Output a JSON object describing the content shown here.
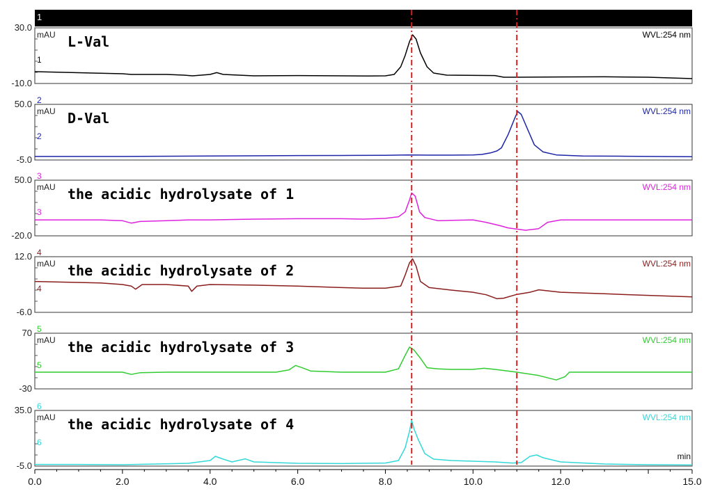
{
  "header": {
    "number": "1"
  },
  "chart_data": {
    "type": "line",
    "x_range": [
      0,
      15
    ],
    "x_ticks": [
      "0.0",
      "2.0",
      "4.0",
      "6.0",
      "8.0",
      "10.0",
      "12.0",
      "15.0"
    ],
    "x_unit": "min",
    "reference_lines_x": [
      8.6,
      11.0
    ],
    "panels": [
      {
        "id": "1",
        "title": "L-Val",
        "color": "#000000",
        "unit": "mAU",
        "wavelength": "WVL:254 nm",
        "y_range": [
          -10,
          30
        ],
        "y_ticks": [
          "30.0",
          "-10.0"
        ],
        "points": [
          [
            0,
            -1.5
          ],
          [
            2,
            -3
          ],
          [
            2.2,
            -3.5
          ],
          [
            3.0,
            -3.5
          ],
          [
            3.4,
            -4
          ],
          [
            3.6,
            -4.5
          ],
          [
            4.0,
            -3.5
          ],
          [
            4.15,
            -2.2
          ],
          [
            4.3,
            -3.5
          ],
          [
            5,
            -4.5
          ],
          [
            6,
            -4.3
          ],
          [
            7,
            -4.5
          ],
          [
            7.6,
            -4.6
          ],
          [
            8.0,
            -4.5
          ],
          [
            8.2,
            -3.5
          ],
          [
            8.35,
            2
          ],
          [
            8.45,
            10
          ],
          [
            8.55,
            20
          ],
          [
            8.62,
            25
          ],
          [
            8.7,
            22
          ],
          [
            8.8,
            12
          ],
          [
            8.95,
            2
          ],
          [
            9.1,
            -2.5
          ],
          [
            9.4,
            -4
          ],
          [
            10.5,
            -4.3
          ],
          [
            10.7,
            -5.5
          ],
          [
            11.0,
            -5.5
          ],
          [
            12,
            -5.3
          ],
          [
            13,
            -5.2
          ],
          [
            14,
            -5.5
          ],
          [
            15,
            -6.5
          ]
        ]
      },
      {
        "id": "2",
        "title": "D-Val",
        "color": "#1c24a6",
        "unit": "mAU",
        "wavelength": "WVL:254 nm",
        "y_range": [
          -5,
          50
        ],
        "y_ticks": [
          "50.0",
          "-5.0"
        ],
        "points": [
          [
            0,
            -1.5
          ],
          [
            2,
            -1.5
          ],
          [
            4,
            -1
          ],
          [
            6,
            -0.6
          ],
          [
            7,
            -0.5
          ],
          [
            8,
            -0.3
          ],
          [
            8.5,
            0
          ],
          [
            9,
            -0.2
          ],
          [
            9.5,
            -0.2
          ],
          [
            10,
            0
          ],
          [
            10.2,
            0.5
          ],
          [
            10.4,
            2
          ],
          [
            10.55,
            4
          ],
          [
            10.65,
            7
          ],
          [
            10.8,
            20
          ],
          [
            10.95,
            36
          ],
          [
            11.02,
            43
          ],
          [
            11.1,
            40
          ],
          [
            11.25,
            25
          ],
          [
            11.4,
            10
          ],
          [
            11.6,
            3
          ],
          [
            11.9,
            0
          ],
          [
            12.5,
            -1
          ],
          [
            13.5,
            -1.3
          ],
          [
            15,
            -1.7
          ]
        ]
      },
      {
        "id": "3",
        "title": "the acidic hydrolysate of 1",
        "color": "#dd22dd",
        "unit": "mAU",
        "wavelength": "WVL:254 nm",
        "y_range": [
          -20,
          50
        ],
        "y_ticks": [
          "50.0",
          "-20.0"
        ],
        "points": [
          [
            0,
            0
          ],
          [
            1.5,
            0
          ],
          [
            2,
            -1
          ],
          [
            2.2,
            -4
          ],
          [
            2.4,
            -2
          ],
          [
            3,
            -1
          ],
          [
            3.5,
            0
          ],
          [
            4,
            0
          ],
          [
            5,
            1
          ],
          [
            6,
            1.5
          ],
          [
            7,
            1.5
          ],
          [
            7.5,
            1
          ],
          [
            8,
            2
          ],
          [
            8.3,
            4
          ],
          [
            8.45,
            10
          ],
          [
            8.55,
            25
          ],
          [
            8.6,
            34
          ],
          [
            8.68,
            30
          ],
          [
            8.78,
            10
          ],
          [
            8.9,
            3
          ],
          [
            9.2,
            -1
          ],
          [
            9.5,
            -0.5
          ],
          [
            10,
            0
          ],
          [
            10.3,
            -3
          ],
          [
            10.6,
            -7
          ],
          [
            10.8,
            -10
          ],
          [
            11.2,
            -13
          ],
          [
            11.5,
            -11
          ],
          [
            11.7,
            -3
          ],
          [
            12,
            0
          ],
          [
            13,
            0
          ],
          [
            15,
            0
          ]
        ]
      },
      {
        "id": "4",
        "title": "the acidic hydrolysate of 2",
        "color": "#8a1c1c",
        "unit": "mAU",
        "wavelength": "WVL:254 nm",
        "y_range": [
          -6,
          12
        ],
        "y_ticks": [
          "12.0",
          "-6.0"
        ],
        "points": [
          [
            0,
            4
          ],
          [
            1.5,
            3.5
          ],
          [
            2,
            3
          ],
          [
            2.2,
            2.5
          ],
          [
            2.3,
            1.5
          ],
          [
            2.45,
            3
          ],
          [
            3,
            3
          ],
          [
            3.5,
            2.5
          ],
          [
            3.58,
            0.8
          ],
          [
            3.7,
            2.5
          ],
          [
            4,
            3
          ],
          [
            5,
            2.8
          ],
          [
            6,
            2.5
          ],
          [
            7,
            2
          ],
          [
            7.5,
            1.8
          ],
          [
            8,
            1.8
          ],
          [
            8.35,
            2.5
          ],
          [
            8.45,
            6
          ],
          [
            8.55,
            10
          ],
          [
            8.62,
            11.3
          ],
          [
            8.7,
            9
          ],
          [
            8.8,
            4
          ],
          [
            9.0,
            2
          ],
          [
            9.5,
            1.2
          ],
          [
            10,
            0.5
          ],
          [
            10.3,
            -0.3
          ],
          [
            10.55,
            -1.6
          ],
          [
            10.7,
            -1.4
          ],
          [
            11,
            -0.2
          ],
          [
            11.3,
            0.5
          ],
          [
            11.5,
            1.3
          ],
          [
            12,
            0.5
          ],
          [
            13,
            0
          ],
          [
            14,
            -0.5
          ],
          [
            15,
            -1
          ]
        ]
      },
      {
        "id": "5",
        "title": "the acidic hydrolysate of 3",
        "color": "#2fcc2f",
        "unit": "mAU",
        "wavelength": "WVL:254 nm",
        "y_range": [
          -30,
          70
        ],
        "y_ticks": [
          "70",
          "-30"
        ],
        "points": [
          [
            0,
            0
          ],
          [
            2,
            0
          ],
          [
            2.2,
            -4
          ],
          [
            2.4,
            -1
          ],
          [
            3,
            0
          ],
          [
            5.5,
            0
          ],
          [
            5.8,
            4
          ],
          [
            5.95,
            12
          ],
          [
            6.1,
            8
          ],
          [
            6.3,
            2
          ],
          [
            7,
            0
          ],
          [
            8,
            0
          ],
          [
            8.3,
            6
          ],
          [
            8.45,
            30
          ],
          [
            8.55,
            45
          ],
          [
            8.65,
            40
          ],
          [
            8.8,
            25
          ],
          [
            8.95,
            8
          ],
          [
            9.2,
            6
          ],
          [
            9.5,
            5
          ],
          [
            10,
            5
          ],
          [
            10.25,
            7
          ],
          [
            10.5,
            5
          ],
          [
            11,
            0
          ],
          [
            11.5,
            -6
          ],
          [
            11.9,
            -14
          ],
          [
            12.1,
            -8
          ],
          [
            12.2,
            0
          ],
          [
            13,
            0
          ],
          [
            15,
            0
          ]
        ]
      },
      {
        "id": "6",
        "title": "the acidic hydrolysate of 4",
        "color": "#33d8d8",
        "unit": "mAU",
        "wavelength": "WVL:254 nm",
        "y_range": [
          -5,
          35
        ],
        "y_ticks": [
          "35.0",
          "-5.0"
        ],
        "points": [
          [
            0,
            -3.8
          ],
          [
            1,
            -3.8
          ],
          [
            2,
            -4
          ],
          [
            3.5,
            -3
          ],
          [
            4,
            -1
          ],
          [
            4.12,
            2
          ],
          [
            4.3,
            0
          ],
          [
            4.5,
            -2
          ],
          [
            4.8,
            0.2
          ],
          [
            5,
            -2
          ],
          [
            6,
            -3
          ],
          [
            7,
            -3.2
          ],
          [
            8,
            -2.8
          ],
          [
            8.3,
            -1
          ],
          [
            8.45,
            8
          ],
          [
            8.55,
            20
          ],
          [
            8.6,
            28
          ],
          [
            8.65,
            22
          ],
          [
            8.75,
            14
          ],
          [
            8.9,
            4
          ],
          [
            9.1,
            0
          ],
          [
            9.5,
            -1
          ],
          [
            10,
            -1.5
          ],
          [
            10.5,
            -2
          ],
          [
            10.9,
            -2.8
          ],
          [
            11.1,
            -2.5
          ],
          [
            11.3,
            2
          ],
          [
            11.45,
            3
          ],
          [
            11.6,
            1
          ],
          [
            12,
            -2
          ],
          [
            13,
            -3.5
          ],
          [
            14,
            -4
          ],
          [
            15,
            -4.2
          ]
        ]
      }
    ]
  }
}
